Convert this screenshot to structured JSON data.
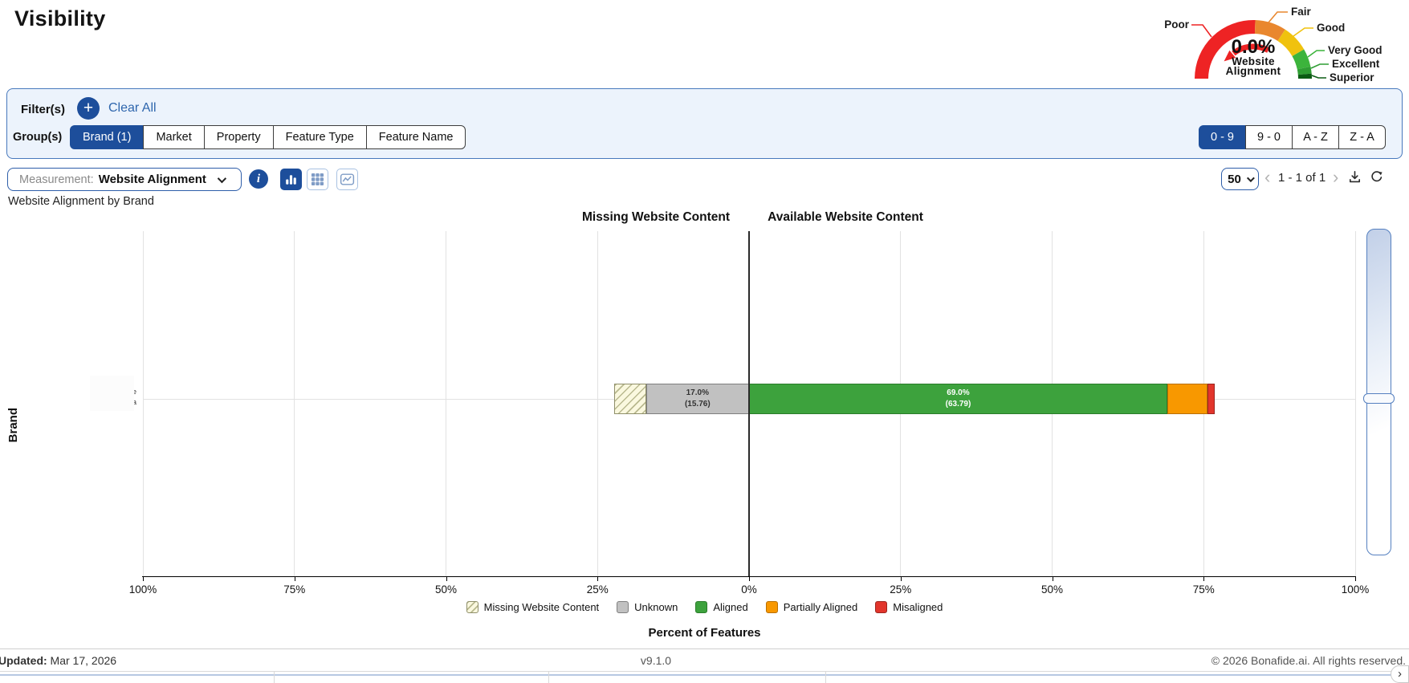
{
  "app": {
    "title": "Visibility"
  },
  "gauge": {
    "value": "0.0%",
    "label_lines": [
      "Website",
      "Alignment"
    ],
    "segments": [
      {
        "label": "Poor",
        "color": "#ee2324",
        "start": 180,
        "end": 88
      },
      {
        "label": "Fair",
        "color": "#e9872e",
        "start": 88,
        "end": 57
      },
      {
        "label": "Good",
        "color": "#f0c20e",
        "start": 57,
        "end": 30
      },
      {
        "label": "Very Good",
        "color": "#3cb43c",
        "start": 30,
        "end": 12
      },
      {
        "label": "Excellent",
        "color": "#2f9e33",
        "start": 12,
        "end": 5
      },
      {
        "label": "Superior",
        "color": "#0b5c13",
        "start": 5,
        "end": 0
      }
    ]
  },
  "filter_panel": {
    "filters_label": "Filter(s)",
    "add_button_glyph": "+",
    "clear_all_label": "Clear All",
    "groups_label": "Group(s)",
    "group_buttons": [
      {
        "label": "Brand (1)",
        "active": true
      },
      {
        "label": "Market",
        "active": false
      },
      {
        "label": "Property",
        "active": false
      },
      {
        "label": "Feature Type",
        "active": false
      },
      {
        "label": "Feature Name",
        "active": false
      }
    ],
    "sort_buttons": [
      {
        "label": "0 - 9",
        "active": true
      },
      {
        "label": "9 - 0",
        "active": false
      },
      {
        "label": "A - Z",
        "active": false
      },
      {
        "label": "Z - A",
        "active": false
      }
    ]
  },
  "toolbar": {
    "measurement_label": "Measurement:",
    "measurement_value": "Website Alignment",
    "info_glyph": "i",
    "view_buttons": [
      {
        "name": "bar-chart",
        "active": true
      },
      {
        "name": "table",
        "active": false
      },
      {
        "name": "line-chart",
        "active": false
      }
    ],
    "page_size": "50",
    "prev_glyph": "‹",
    "next_glyph": "›",
    "range_label": "1 - 1 of 1"
  },
  "chart": {
    "subtitle": "Website Alignment by Brand",
    "left_header": "Missing Website Content",
    "right_header": "Available Website Content",
    "y_axis_label": "Brand",
    "x_axis_label": "Percent of Features",
    "row_label_fragments": [
      "e",
      "a"
    ]
  },
  "chart_data": {
    "type": "bar",
    "orientation": "horizontal-diverging-stacked",
    "title": "Website Alignment by Brand",
    "categories": [
      "(redacted brand)"
    ],
    "axis": {
      "min": -100,
      "max": 100,
      "tick_step": 25,
      "tick_values": [
        -100,
        -75,
        -50,
        -25,
        0,
        25,
        50,
        75,
        100
      ],
      "tick_labels": [
        "100%",
        "75%",
        "50%",
        "25%",
        "0%",
        "25%",
        "50%",
        "75%",
        "100%"
      ]
    },
    "series": [
      {
        "name": "Missing Website Content",
        "side": "left",
        "pct": 5.3,
        "label": "",
        "sublabel": "",
        "label_color": ""
      },
      {
        "name": "Unknown",
        "side": "left",
        "pct": 17.0,
        "label": "17.0%",
        "sublabel": "(15.76)",
        "label_color": "#333333"
      },
      {
        "name": "Aligned",
        "side": "right",
        "pct": 69.0,
        "label": "69.0%",
        "sublabel": "(63.79)",
        "label_color": "#ffffff"
      },
      {
        "name": "Partially Aligned",
        "side": "right",
        "pct": 6.6,
        "label": "",
        "sublabel": "",
        "label_color": ""
      },
      {
        "name": "Misaligned",
        "side": "right",
        "pct": 1.2,
        "label": "",
        "sublabel": "",
        "label_color": ""
      }
    ]
  },
  "legend": [
    {
      "label": "Missing Website Content",
      "color": "#faf8df",
      "border": "#8f8f6a",
      "hatched": true
    },
    {
      "label": "Unknown",
      "color": "#c1c1c1",
      "border": "#7f7f7f",
      "hatched": false
    },
    {
      "label": "Aligned",
      "color": "#3da23d",
      "border": "#2a7c2a",
      "hatched": false
    },
    {
      "label": "Partially Aligned",
      "color": "#f89800",
      "border": "#b96f00",
      "hatched": false
    },
    {
      "label": "Misaligned",
      "color": "#e2352c",
      "border": "#9c251f",
      "hatched": false
    }
  ],
  "footer": {
    "updated_label": "Updated:",
    "updated_value": " Mar 17, 2026",
    "version": "v9.1.0",
    "copyright": "© 2026 Bonafide.ai. All rights reserved."
  }
}
